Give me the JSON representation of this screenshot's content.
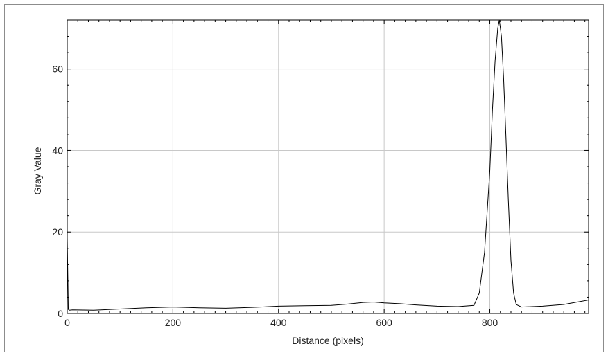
{
  "chart_data": {
    "type": "line",
    "title": "",
    "xlabel": "Distance (pixels)",
    "ylabel": "Gray Value",
    "xlim": [
      0,
      987
    ],
    "ylim": [
      0,
      72
    ],
    "x_ticks": [
      0,
      200,
      400,
      600,
      800
    ],
    "y_ticks": [
      0,
      20,
      40,
      60
    ],
    "x_tick_labels": [
      "0",
      "200",
      "400",
      "600",
      "800"
    ],
    "y_tick_labels": [
      "0",
      "20",
      "40",
      "60"
    ],
    "grid": true,
    "legend": "none",
    "series": [
      {
        "color": "#000000",
        "x": [
          0,
          2,
          4,
          10,
          50,
          100,
          150,
          200,
          250,
          300,
          350,
          400,
          450,
          500,
          530,
          560,
          580,
          600,
          630,
          660,
          700,
          740,
          770,
          780,
          790,
          800,
          805,
          810,
          815,
          818,
          822,
          826,
          830,
          835,
          840,
          845,
          850,
          860,
          880,
          900,
          940,
          970,
          987
        ],
        "y": [
          18.5,
          1.0,
          0.8,
          0.9,
          0.8,
          1.1,
          1.4,
          1.6,
          1.4,
          1.3,
          1.5,
          1.8,
          1.9,
          2.0,
          2.3,
          2.7,
          2.8,
          2.6,
          2.4,
          2.1,
          1.8,
          1.7,
          2.0,
          5.0,
          15.0,
          35.0,
          50.0,
          62.0,
          70.0,
          72.0,
          68.0,
          58.0,
          45.0,
          28.0,
          13.0,
          5.0,
          2.2,
          1.6,
          1.7,
          1.8,
          2.2,
          2.9,
          3.3
        ]
      }
    ]
  }
}
